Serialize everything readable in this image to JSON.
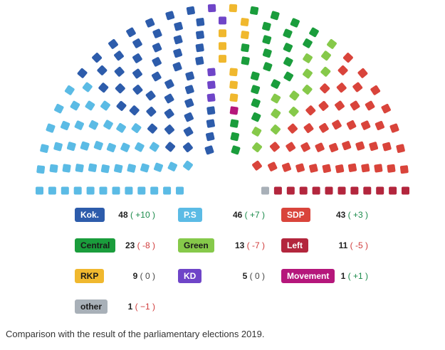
{
  "chart_data": {
    "type": "hemicycle",
    "total_seats": 200,
    "parties": [
      {
        "name": "Kok.",
        "seats": 48,
        "change": "+10",
        "color": "#2d5cab",
        "text_color": "#ffffff"
      },
      {
        "name": "P.S",
        "seats": 46,
        "change": "+7",
        "color": "#5bbbe5",
        "text_color": "#ffffff"
      },
      {
        "name": "SDP",
        "seats": 43,
        "change": "+3",
        "color": "#d9443b",
        "text_color": "#ffffff"
      },
      {
        "name": "Central",
        "seats": 23,
        "change": "-8",
        "color": "#1a9d3c",
        "text_color": "#1a1a1a"
      },
      {
        "name": "Green",
        "seats": 13,
        "change": "-7",
        "color": "#86c94a",
        "text_color": "#1a1a1a"
      },
      {
        "name": "Left",
        "seats": 11,
        "change": "-5",
        "color": "#b3263d",
        "text_color": "#ffffff"
      },
      {
        "name": "RKP",
        "seats": 9,
        "change": "0",
        "color": "#f0b82e",
        "text_color": "#1a1a1a"
      },
      {
        "name": "KD",
        "seats": 5,
        "change": "0",
        "color": "#6f45c8",
        "text_color": "#ffffff"
      },
      {
        "name": "Movement",
        "seats": 1,
        "change": "+1",
        "color": "#b5177b",
        "text_color": "#ffffff"
      },
      {
        "name": "other",
        "seats": 1,
        "change": "−1",
        "color": "#a8b0b8",
        "text_color": "#1a1a1a"
      }
    ],
    "seat_order": [
      "other",
      "Left",
      "SDP",
      "Green",
      "Central",
      "Movement",
      "RKP",
      "KD",
      "Kok.",
      "P.S"
    ]
  },
  "footnote": "Comparison with the result of the parliamentary elections 2019."
}
